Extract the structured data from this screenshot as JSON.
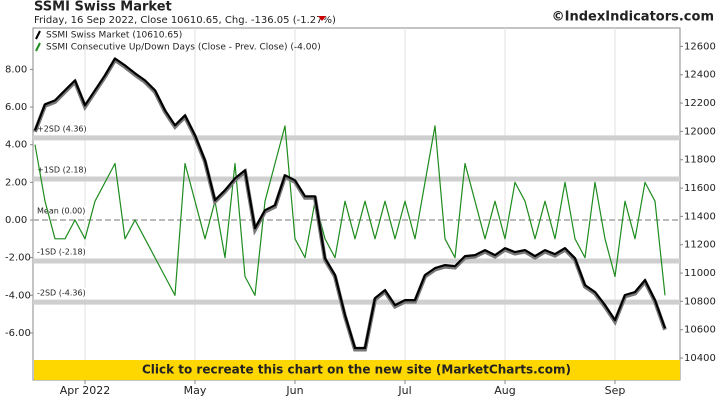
{
  "chart_data": {
    "type": "line",
    "title": "SSMI Swiss Market",
    "subtitle": "Friday, 16 Sep 2022, Close 10610.65, Chg. -136.05 (-1.27%)",
    "credit": "©IndexIndicators.com",
    "banner": "Click to recreate this chart on the new site (MarketCharts.com)",
    "categories": [
      null,
      null,
      null,
      null,
      null,
      "Apr 2022",
      null,
      null,
      null,
      null,
      null,
      null,
      null,
      null,
      null,
      null,
      "May",
      null,
      null,
      null,
      null,
      null,
      null,
      null,
      null,
      null,
      "Jun",
      null,
      null,
      null,
      null,
      null,
      null,
      null,
      null,
      null,
      null,
      "Jul",
      null,
      null,
      null,
      null,
      null,
      null,
      null,
      null,
      null,
      "Aug",
      null,
      null,
      null,
      null,
      null,
      null,
      null,
      null,
      null,
      null,
      "Sep",
      null,
      null,
      null,
      null,
      null
    ],
    "series": [
      {
        "name": "SSMI Swiss Market (10610.65)",
        "color": "#000000",
        "axis": "y2",
        "values": [
          12008,
          12191,
          12219,
          12290,
          12360,
          12184,
          12290,
          12396,
          12515,
          12466,
          12410,
          12360,
          12290,
          12149,
          12043,
          12114,
          11973,
          11796,
          11514,
          11585,
          11669,
          11726,
          11317,
          11444,
          11479,
          11691,
          11655,
          11542,
          11542,
          11105,
          10986,
          10704,
          10471,
          10471,
          10823,
          10880,
          10774,
          10809,
          10809,
          10986,
          11035,
          11056,
          11049,
          11120,
          11127,
          11162,
          11127,
          11176,
          11148,
          11162,
          11120,
          11162,
          11134,
          11176,
          11105,
          10915,
          10866,
          10774,
          10668,
          10845,
          10866,
          10950,
          10809,
          10610.65
        ]
      },
      {
        "name": "SSMI Consecutive Up/Down Days (Close - Prev. Close) (-4.00)",
        "color": "#1e8c1e",
        "values": [
          4,
          1,
          -1,
          -1,
          0,
          -1,
          1,
          2,
          3,
          -1,
          0,
          -1,
          -2,
          -3,
          -4,
          3,
          1,
          -1,
          1,
          -2,
          3,
          -3,
          -4,
          1,
          3,
          5,
          -1,
          -2,
          1,
          -1,
          -2,
          1,
          -1,
          1,
          -1,
          1,
          -1,
          1,
          -1,
          2,
          5,
          -1,
          -2,
          3,
          1,
          -1,
          1,
          -1,
          2,
          1,
          -1,
          1,
          -1,
          2,
          -1,
          -2,
          2,
          -1,
          -3,
          1,
          -1,
          2,
          1,
          -4
        ]
      }
    ],
    "bands": [
      {
        "label": "+2SD (4.36)",
        "value": 4.36
      },
      {
        "label": "+1SD (2.18)",
        "value": 2.18
      },
      {
        "label": "Mean (0.00)",
        "value": 0
      },
      {
        "label": "-1SD (-2.18)",
        "value": -2.18
      },
      {
        "label": "-2SD (-4.36)",
        "value": -4.36
      }
    ],
    "ylim": [
      -8.5,
      10.2
    ],
    "yticks": [
      {
        "value": 8,
        "label": "8.00"
      },
      {
        "value": 6,
        "label": "6.00"
      },
      {
        "value": 4,
        "label": "4.00"
      },
      {
        "value": 2,
        "label": "2.00"
      },
      {
        "value": 0,
        "label": "0.00"
      },
      {
        "value": -2,
        "label": "-2.00"
      },
      {
        "value": -4,
        "label": "-4.00"
      },
      {
        "value": -6,
        "label": "-6.00"
      }
    ],
    "y2lim": [
      10245,
      12730
    ],
    "y2ticks": [
      12600,
      12400,
      12200,
      12000,
      11800,
      11600,
      11400,
      11200,
      11000,
      10800,
      10600,
      10400
    ]
  }
}
